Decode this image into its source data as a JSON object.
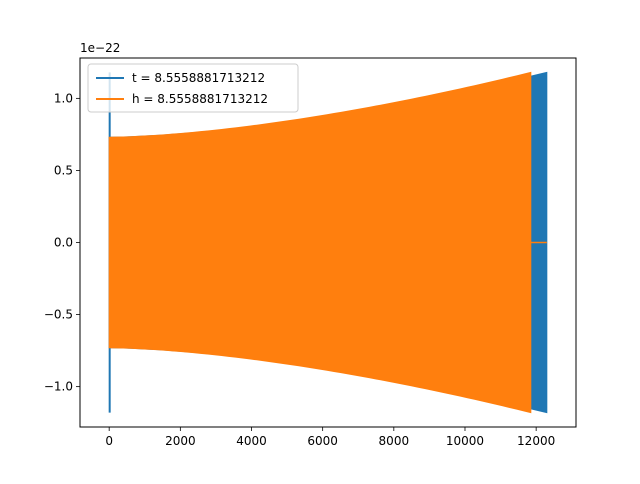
{
  "chart_data": {
    "type": "line",
    "title": "",
    "xlabel": "",
    "ylabel": "",
    "y_offset_label": "1e−22",
    "xlim": [
      -820,
      13120
    ],
    "ylim": [
      -1.28,
      1.28
    ],
    "x_ticks": [
      0,
      2000,
      4000,
      6000,
      8000,
      10000,
      12000
    ],
    "x_tick_labels": [
      "0",
      "2000",
      "4000",
      "6000",
      "8000",
      "10000",
      "12000"
    ],
    "y_ticks": [
      -1.0,
      -0.5,
      0.0,
      0.5,
      1.0
    ],
    "y_tick_labels": [
      "−1.0",
      "−0.5",
      "0.0",
      "0.5",
      "1.0"
    ],
    "grid": false,
    "legend_position": "top-left",
    "series": [
      {
        "name": "t = 8.5558881713212",
        "color": "#1f77b4",
        "shape": "chirp-envelope",
        "x_start": 0,
        "x_end": 12300,
        "initial_spike": 1.18,
        "envelope_start": 0.73,
        "envelope_end": 1.18
      },
      {
        "name": "h = 8.5558881713212",
        "color": "#ff7f0e",
        "shape": "chirp-envelope",
        "x_start": 0,
        "x_end": 11850,
        "envelope_start": 0.73,
        "envelope_end": 1.18,
        "zero_tail_end": 12300
      }
    ]
  }
}
